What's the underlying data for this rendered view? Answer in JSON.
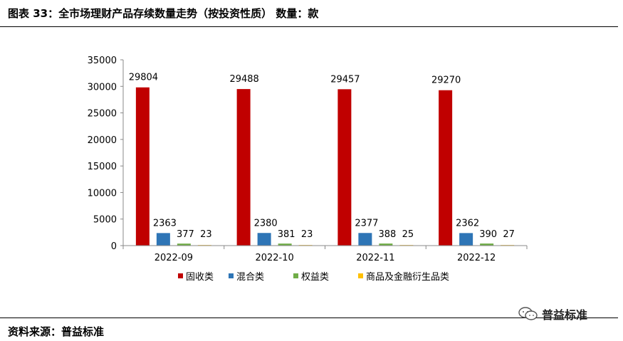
{
  "header": {
    "title": "图表 33：全市场理财产品存续数量走势（按投资性质）    数量：款"
  },
  "footer": {
    "source": "资料来源：普益标准"
  },
  "watermark": {
    "text": "普益标准",
    "icon": "wechat-icon"
  },
  "colors": {
    "series": [
      "#C00000",
      "#2E75B6",
      "#70AD47",
      "#FFC000"
    ]
  },
  "chart_data": {
    "type": "bar",
    "categories": [
      "2022-09",
      "2022-10",
      "2022-11",
      "2022-12"
    ],
    "series": [
      {
        "name": "固收类",
        "values": [
          29804,
          29488,
          29457,
          29270
        ]
      },
      {
        "name": "混合类",
        "values": [
          2363,
          2380,
          2377,
          2362
        ]
      },
      {
        "name": "权益类",
        "values": [
          377,
          381,
          388,
          390
        ]
      },
      {
        "name": "商品及金融衍生品类",
        "values": [
          23,
          23,
          25,
          27
        ]
      }
    ],
    "ylim": [
      0,
      35000
    ],
    "yticks": [
      "0",
      "5000",
      "10000",
      "15000",
      "20000",
      "25000",
      "30000",
      "35000"
    ],
    "data_labels": true,
    "grid": false,
    "legend": "bottom"
  }
}
